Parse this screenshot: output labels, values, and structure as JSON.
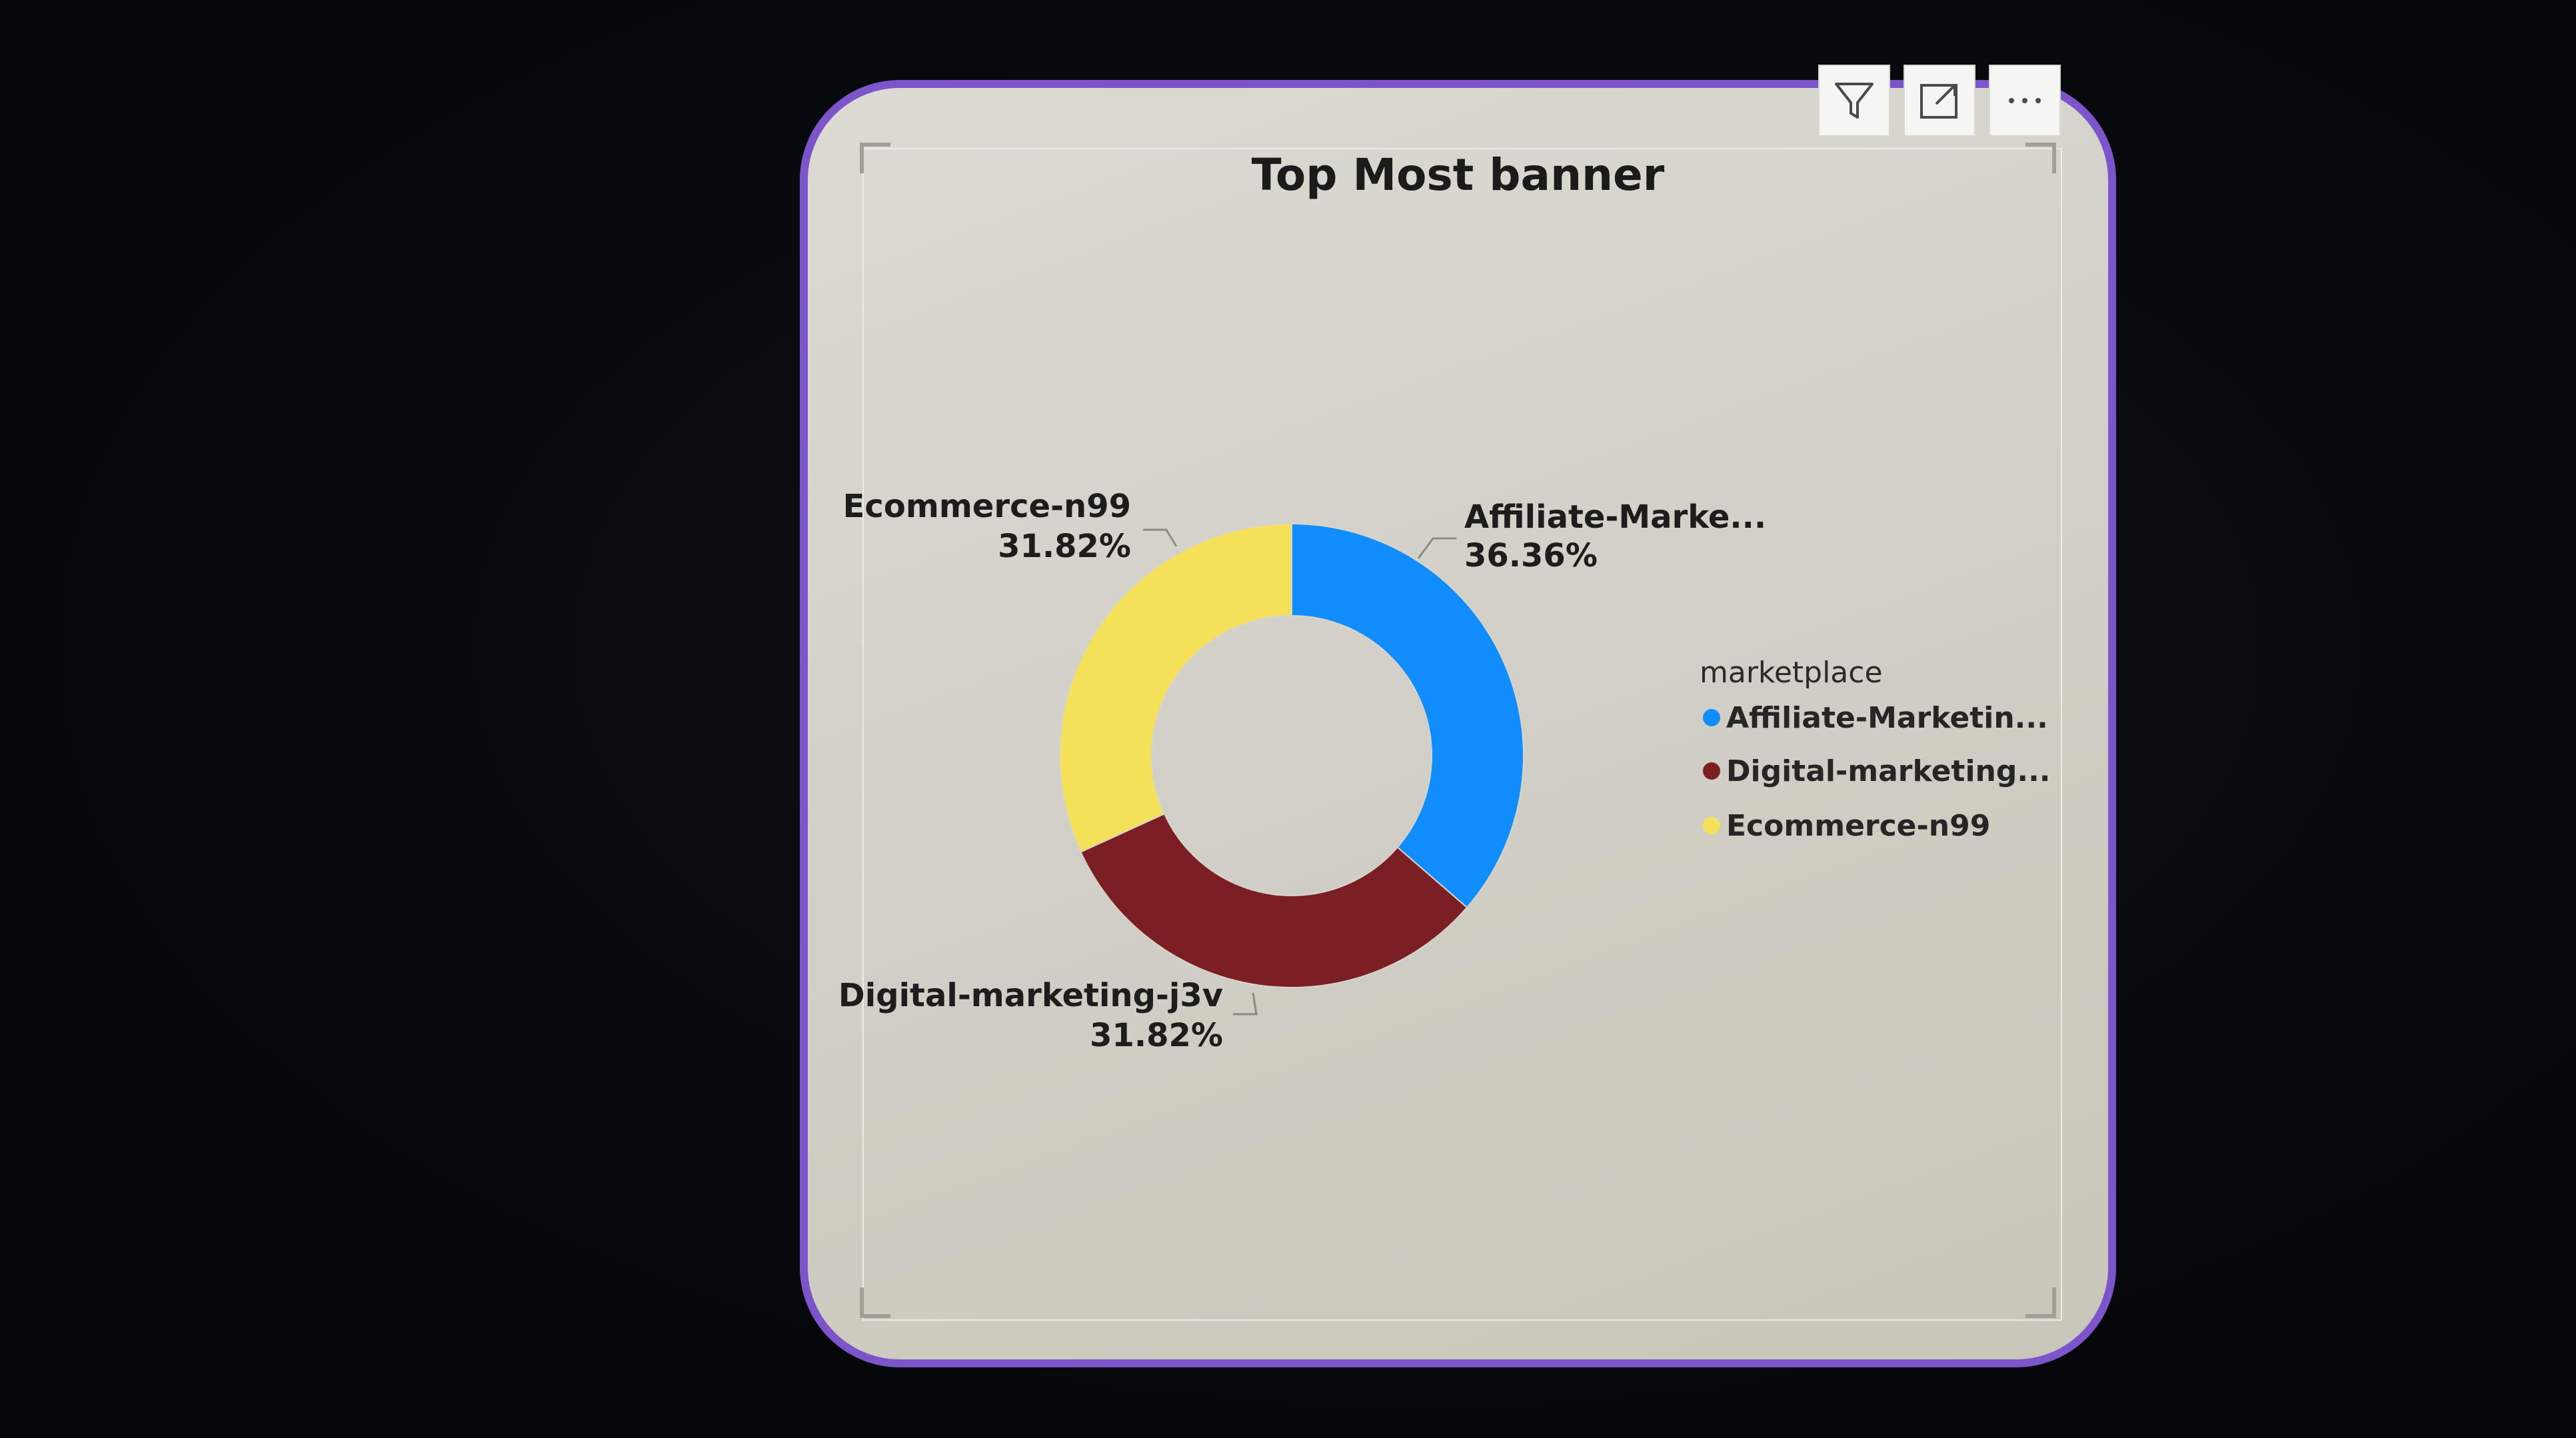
{
  "visual": {
    "title": "Top Most banner"
  },
  "toolbar": {
    "buttons": [
      {
        "icon": "filter-icon"
      },
      {
        "icon": "focus-mode-icon"
      },
      {
        "icon": "more-options-icon",
        "label": "···"
      }
    ]
  },
  "colors": {
    "border": "#7b55c9",
    "affiliate": "#118dff",
    "digital": "#7b1f24",
    "ecommerce": "#f5e05a"
  },
  "chart_data": {
    "type": "donut",
    "title": "Top Most banner",
    "legend": {
      "title": "marketplace",
      "position": "right",
      "items": [
        {
          "label": "Affiliate-Marketin...",
          "color": "#118dff"
        },
        {
          "label": "Digital-marketing...",
          "color": "#7b1f24"
        },
        {
          "label": "Ecommerce-n99",
          "color": "#f5e05a"
        }
      ]
    },
    "slices": [
      {
        "label": "Affiliate-Marke...",
        "value": 36.36,
        "value_label": "36.36%",
        "color": "#118dff"
      },
      {
        "label": "Digital-marketing-j3v",
        "value": 31.82,
        "value_label": "31.82%",
        "color": "#7b1f24"
      },
      {
        "label": "Ecommerce-n99",
        "value": 31.82,
        "value_label": "31.82%",
        "color": "#f5e05a"
      }
    ]
  }
}
